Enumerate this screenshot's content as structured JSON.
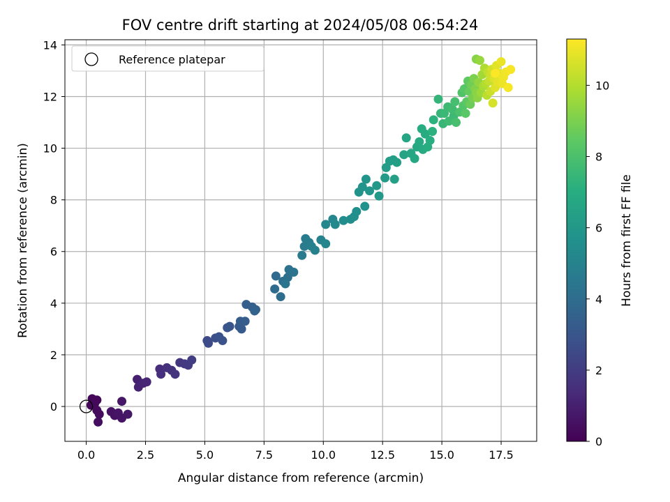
{
  "chart_data": {
    "type": "scatter",
    "title": "FOV centre drift starting at 2024/05/08 06:54:24",
    "xlabel": "Angular distance from reference (arcmin)",
    "ylabel": "Rotation from reference (arcmin)",
    "xlim": [
      -0.9,
      19.0
    ],
    "ylim": [
      -1.35,
      14.2
    ],
    "xticks": [
      "0.0",
      "2.5",
      "5.0",
      "7.5",
      "10.0",
      "12.5",
      "15.0",
      "17.5"
    ],
    "xtick_values": [
      0,
      2.5,
      5,
      7.5,
      10,
      12.5,
      15,
      17.5
    ],
    "yticks": [
      "0",
      "2",
      "4",
      "6",
      "8",
      "10",
      "12",
      "14"
    ],
    "ytick_values": [
      0,
      2,
      4,
      6,
      8,
      10,
      12,
      14
    ],
    "grid": true,
    "legend": {
      "position": "top-left",
      "entries": [
        "Reference platepar"
      ]
    },
    "reference_point": {
      "x": 0,
      "y": 0
    },
    "colorbar": {
      "label": "Hours from first FF file",
      "min": 0,
      "max": 11.3,
      "ticks": [
        "0",
        "2",
        "4",
        "6",
        "8",
        "10"
      ],
      "tick_values": [
        0,
        2,
        4,
        6,
        8,
        10
      ],
      "colormap": "viridis"
    },
    "series": [
      {
        "points": [
          [
            0.25,
            0.3,
            0.15
          ],
          [
            0.45,
            0.25,
            0.2
          ],
          [
            0.35,
            0.1,
            0.25
          ],
          [
            0.45,
            -0.15,
            0.3
          ],
          [
            0.55,
            -0.3,
            0.35
          ],
          [
            0.5,
            -0.6,
            0.4
          ],
          [
            0.2,
            0.05,
            0.2
          ],
          [
            1.05,
            -0.2,
            0.5
          ],
          [
            1.2,
            -0.35,
            0.55
          ],
          [
            1.5,
            -0.45,
            0.6
          ],
          [
            1.5,
            0.2,
            0.65
          ],
          [
            1.75,
            -0.3,
            0.7
          ],
          [
            1.35,
            -0.25,
            0.6
          ],
          [
            2.15,
            1.05,
            1.0
          ],
          [
            2.2,
            0.75,
            1.1
          ],
          [
            2.4,
            0.9,
            1.15
          ],
          [
            2.55,
            0.95,
            1.2
          ],
          [
            3.1,
            1.45,
            1.4
          ],
          [
            3.15,
            1.25,
            1.5
          ],
          [
            3.4,
            1.5,
            1.55
          ],
          [
            3.6,
            1.4,
            1.6
          ],
          [
            3.75,
            1.25,
            1.7
          ],
          [
            3.95,
            1.7,
            1.8
          ],
          [
            4.15,
            1.65,
            1.9
          ],
          [
            4.3,
            1.6,
            1.95
          ],
          [
            4.45,
            1.8,
            2.0
          ],
          [
            5.1,
            2.55,
            2.5
          ],
          [
            5.15,
            2.45,
            2.6
          ],
          [
            5.45,
            2.65,
            2.7
          ],
          [
            5.6,
            2.7,
            2.8
          ],
          [
            5.75,
            2.55,
            2.85
          ],
          [
            5.95,
            3.05,
            2.95
          ],
          [
            6.05,
            3.1,
            3.0
          ],
          [
            6.45,
            3.1,
            3.1
          ],
          [
            6.55,
            3.0,
            3.2
          ],
          [
            6.5,
            3.3,
            3.25
          ],
          [
            6.7,
            3.3,
            3.3
          ],
          [
            6.75,
            3.95,
            3.4
          ],
          [
            7.0,
            3.85,
            3.45
          ],
          [
            7.15,
            3.75,
            3.5
          ],
          [
            7.1,
            3.7,
            3.55
          ],
          [
            8.0,
            5.05,
            3.9
          ],
          [
            7.95,
            4.55,
            3.95
          ],
          [
            8.2,
            4.25,
            4.0
          ],
          [
            8.3,
            4.85,
            4.1
          ],
          [
            8.5,
            5.0,
            4.15
          ],
          [
            8.55,
            5.3,
            4.2
          ],
          [
            8.75,
            5.2,
            4.3
          ],
          [
            8.4,
            4.75,
            4.35
          ],
          [
            9.1,
            5.85,
            4.6
          ],
          [
            9.2,
            6.2,
            4.65
          ],
          [
            9.25,
            6.5,
            4.7
          ],
          [
            9.4,
            6.35,
            4.75
          ],
          [
            9.5,
            6.2,
            4.85
          ],
          [
            9.65,
            6.05,
            4.9
          ],
          [
            9.9,
            6.45,
            5.0
          ],
          [
            10.1,
            6.3,
            5.05
          ],
          [
            10.1,
            7.05,
            5.15
          ],
          [
            10.4,
            7.25,
            5.2
          ],
          [
            10.5,
            7.05,
            5.3
          ],
          [
            10.85,
            7.2,
            5.4
          ],
          [
            11.15,
            7.25,
            5.5
          ],
          [
            11.3,
            7.35,
            5.55
          ],
          [
            11.4,
            7.55,
            5.6
          ],
          [
            11.75,
            7.75,
            5.7
          ],
          [
            11.5,
            8.3,
            5.75
          ],
          [
            11.65,
            8.5,
            5.8
          ],
          [
            11.8,
            8.8,
            5.85
          ],
          [
            11.95,
            8.35,
            5.9
          ],
          [
            12.25,
            8.55,
            6.0
          ],
          [
            12.35,
            8.15,
            6.05
          ],
          [
            12.6,
            8.85,
            6.15
          ],
          [
            12.65,
            9.25,
            6.2
          ],
          [
            12.8,
            9.5,
            6.25
          ],
          [
            12.95,
            9.55,
            6.3
          ],
          [
            13.1,
            9.45,
            6.35
          ],
          [
            13.0,
            8.8,
            6.4
          ],
          [
            13.4,
            9.75,
            6.55
          ],
          [
            13.5,
            10.4,
            6.6
          ],
          [
            13.7,
            9.8,
            6.65
          ],
          [
            13.85,
            9.6,
            6.7
          ],
          [
            13.95,
            10.05,
            6.75
          ],
          [
            14.05,
            10.25,
            6.8
          ],
          [
            14.15,
            10.75,
            6.9
          ],
          [
            14.3,
            10.55,
            6.95
          ],
          [
            14.4,
            10.05,
            7.0
          ],
          [
            14.5,
            10.3,
            7.05
          ],
          [
            14.6,
            10.65,
            7.15
          ],
          [
            14.65,
            11.1,
            7.2
          ],
          [
            14.85,
            11.9,
            7.4
          ],
          [
            14.95,
            11.35,
            7.45
          ],
          [
            15.05,
            10.95,
            7.5
          ],
          [
            15.1,
            11.35,
            7.55
          ],
          [
            15.25,
            11.6,
            7.65
          ],
          [
            15.3,
            11.05,
            7.7
          ],
          [
            15.45,
            11.5,
            7.75
          ],
          [
            15.55,
            11.8,
            7.85
          ],
          [
            15.6,
            11.0,
            7.9
          ],
          [
            15.75,
            11.4,
            8.0
          ],
          [
            15.85,
            12.15,
            8.1
          ],
          [
            15.9,
            11.65,
            8.2
          ],
          [
            15.95,
            12.3,
            8.3
          ],
          [
            16.05,
            11.8,
            8.4
          ],
          [
            16.1,
            12.6,
            8.5
          ],
          [
            16.15,
            12.2,
            8.6
          ],
          [
            16.2,
            11.7,
            8.7
          ],
          [
            16.25,
            12.45,
            8.8
          ],
          [
            16.3,
            11.95,
            8.9
          ],
          [
            16.35,
            12.7,
            9.0
          ],
          [
            16.4,
            12.3,
            9.1
          ],
          [
            16.45,
            13.45,
            9.2
          ],
          [
            16.5,
            11.95,
            9.3
          ],
          [
            16.55,
            12.55,
            9.4
          ],
          [
            16.6,
            13.4,
            9.5
          ],
          [
            16.65,
            12.15,
            9.6
          ],
          [
            16.7,
            12.85,
            9.7
          ],
          [
            16.75,
            12.4,
            9.8
          ],
          [
            16.8,
            13.1,
            9.9
          ],
          [
            16.85,
            12.5,
            10.0
          ],
          [
            16.9,
            12.05,
            10.1
          ],
          [
            16.95,
            12.95,
            10.2
          ],
          [
            17.0,
            12.6,
            10.3
          ],
          [
            17.05,
            12.2,
            10.4
          ],
          [
            17.1,
            13.05,
            10.5
          ],
          [
            17.15,
            11.75,
            10.6
          ],
          [
            17.2,
            12.7,
            10.7
          ],
          [
            17.25,
            12.35,
            10.75
          ],
          [
            17.3,
            13.2,
            10.8
          ],
          [
            17.35,
            12.55,
            10.85
          ],
          [
            17.4,
            12.9,
            10.9
          ],
          [
            17.5,
            13.35,
            10.95
          ],
          [
            17.55,
            12.5,
            11.0
          ],
          [
            17.6,
            12.75,
            11.05
          ],
          [
            17.7,
            12.95,
            11.1
          ],
          [
            17.8,
            12.35,
            11.15
          ],
          [
            17.9,
            13.05,
            11.2
          ],
          [
            17.25,
            12.9,
            11.25
          ],
          [
            14.2,
            9.95,
            6.85
          ],
          [
            15.5,
            11.25,
            7.6
          ],
          [
            16.0,
            11.35,
            8.35
          ],
          [
            16.45,
            12.15,
            9.25
          ],
          [
            17.05,
            12.8,
            10.45
          ]
        ]
      }
    ]
  }
}
